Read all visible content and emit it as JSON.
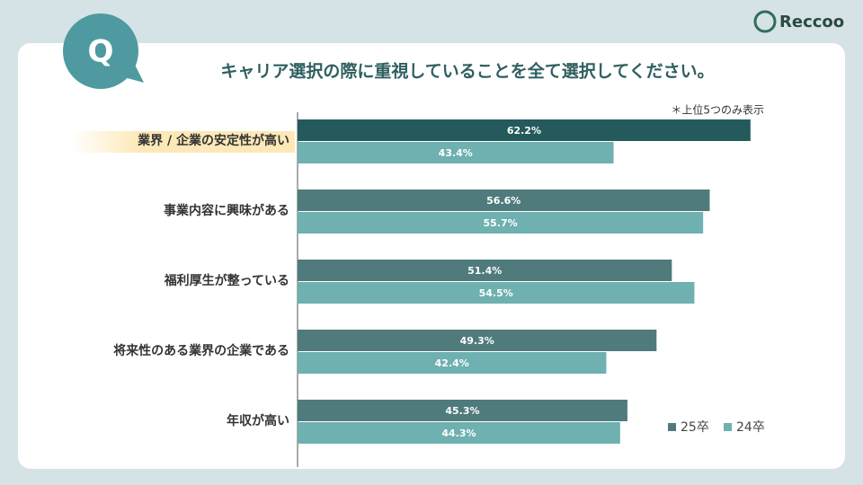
{
  "logo": "Reccoo",
  "badge": "Q",
  "chart_data": {
    "type": "hbar",
    "title": "キャリア選択の際に重視していることを全て選択してください。",
    "note": "＊上位5つのみ表示",
    "categories": [
      "業界 / 企業の安定性が高い",
      "事業内容に興味がある",
      "福利厚生が整っている",
      "将来性のある業界の企業である",
      "年収が高い"
    ],
    "series": [
      {
        "name": "25卒",
        "color": "#4f7b7c",
        "values": [
          62.2,
          56.6,
          51.4,
          49.3,
          45.3
        ],
        "value_labels": [
          "62.2%",
          "56.6%",
          "51.4%",
          "49.3%",
          "45.3%"
        ]
      },
      {
        "name": "24卒",
        "color": "#6fb0b0",
        "values": [
          43.4,
          55.7,
          54.5,
          42.4,
          44.3
        ],
        "value_labels": [
          "43.4%",
          "55.7%",
          "54.5%",
          "42.4%",
          "44.3%"
        ]
      }
    ],
    "legend": "lower-right"
  }
}
